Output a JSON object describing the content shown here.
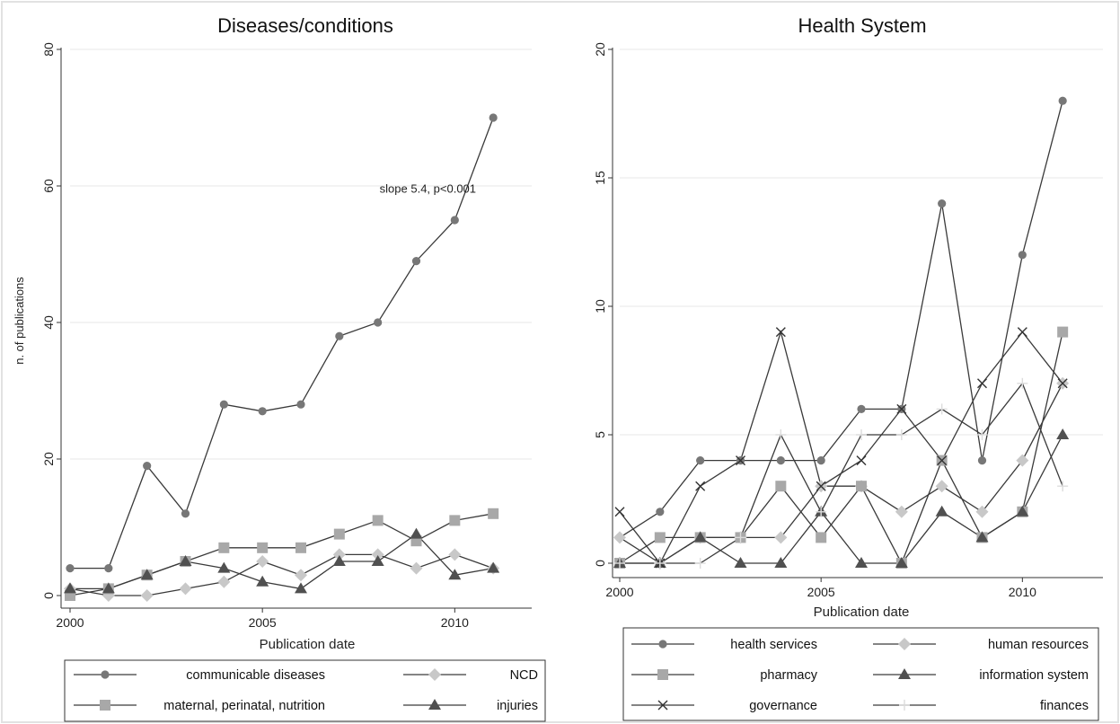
{
  "chart_data": [
    {
      "type": "line",
      "title": "Diseases/conditions",
      "xlabel": "Publication date",
      "ylabel": "n. of publications",
      "xlim": [
        2000,
        2012
      ],
      "ylim": [
        0,
        80
      ],
      "xticks": [
        2000,
        2005,
        2010
      ],
      "yticks": [
        0,
        20,
        40,
        60,
        80
      ],
      "grid": true,
      "legend_position": "bottom",
      "annotation": {
        "text": "slope 5.4, p<0.001",
        "x": 2009.3,
        "y": 59
      },
      "x": [
        2000,
        2001,
        2002,
        2003,
        2004,
        2005,
        2006,
        2007,
        2008,
        2009,
        2010,
        2011
      ],
      "series": [
        {
          "name": "communicable diseases",
          "marker": "circle",
          "color": "#777777",
          "values": [
            4,
            4,
            19,
            12,
            28,
            27,
            28,
            38,
            40,
            49,
            55,
            70
          ]
        },
        {
          "name": "NCD",
          "marker": "diamond",
          "color": "#c8c8c8",
          "values": [
            1,
            0,
            0,
            1,
            2,
            5,
            3,
            6,
            6,
            4,
            6,
            4
          ]
        },
        {
          "name": "maternal, perinatal, nutrition",
          "marker": "square",
          "color": "#a8a8a8",
          "values": [
            0,
            1,
            3,
            5,
            7,
            7,
            7,
            9,
            11,
            8,
            11,
            12
          ]
        },
        {
          "name": "injuries",
          "marker": "triangle",
          "color": "#505050",
          "values": [
            1,
            1,
            3,
            5,
            4,
            2,
            1,
            5,
            5,
            9,
            3,
            4
          ]
        }
      ]
    },
    {
      "type": "line",
      "title": "Health System",
      "xlabel": "Publication date",
      "ylabel": "",
      "xlim": [
        2000,
        2012
      ],
      "ylim": [
        0,
        20
      ],
      "xticks": [
        2000,
        2005,
        2010
      ],
      "yticks": [
        0,
        5,
        10,
        15,
        20
      ],
      "grid": true,
      "legend_position": "bottom",
      "x": [
        2000,
        2001,
        2002,
        2003,
        2004,
        2005,
        2006,
        2007,
        2008,
        2009,
        2010,
        2011
      ],
      "series": [
        {
          "name": "health services",
          "marker": "circle",
          "color": "#777777",
          "values": [
            1,
            2,
            4,
            4,
            4,
            4,
            6,
            6,
            14,
            4,
            12,
            18
          ]
        },
        {
          "name": "human resources",
          "marker": "diamond",
          "color": "#c8c8c8",
          "values": [
            1,
            0,
            1,
            1,
            1,
            3,
            3,
            2,
            3,
            2,
            4,
            7
          ]
        },
        {
          "name": "pharmacy",
          "marker": "square",
          "color": "#a8a8a8",
          "values": [
            0,
            1,
            1,
            1,
            3,
            1,
            3,
            0,
            4,
            1,
            2,
            9
          ]
        },
        {
          "name": "information system",
          "marker": "triangle",
          "color": "#505050",
          "values": [
            0,
            0,
            1,
            0,
            0,
            2,
            0,
            0,
            2,
            1,
            2,
            5
          ]
        },
        {
          "name": "governance",
          "marker": "x",
          "color": "#333333",
          "values": [
            2,
            0,
            3,
            4,
            9,
            3,
            4,
            6,
            4,
            7,
            9,
            7
          ]
        },
        {
          "name": "finances",
          "marker": "plus",
          "color": "#dcdcdc",
          "values": [
            0,
            0,
            0,
            1,
            5,
            2,
            5,
            5,
            6,
            5,
            7,
            3
          ]
        }
      ]
    }
  ]
}
